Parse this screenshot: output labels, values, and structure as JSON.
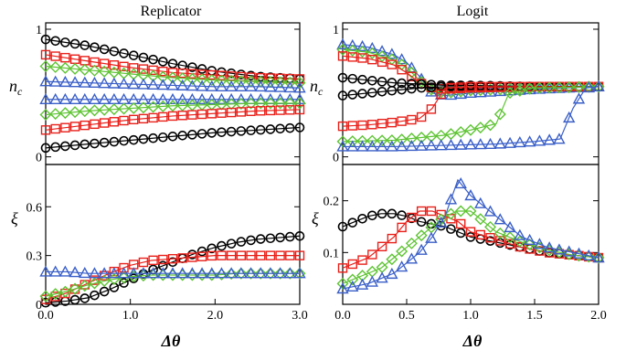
{
  "titles": {
    "left": "Replicator",
    "right": "Logit"
  },
  "colors": {
    "black": "#000000",
    "red": "#e8201a",
    "green": "#5ec433",
    "blue": "#3a5fc8"
  },
  "chart_data": [
    {
      "id": "rep_nc",
      "type": "scatter",
      "title": "Replicator",
      "xlabel": "",
      "ylabel": "n_c",
      "xlim": [
        0,
        3
      ],
      "ylim": [
        -0.06,
        1.05
      ],
      "xticks": [],
      "yticks": [
        0,
        1
      ],
      "ytick_labels": [
        "0",
        "1"
      ],
      "series": [
        {
          "marker": "circle",
          "color": "black",
          "x": [
            0,
            0.5,
            1.0,
            1.5,
            2.0,
            2.5,
            3.0
          ],
          "y": [
            0.92,
            0.87,
            0.8,
            0.73,
            0.67,
            0.63,
            0.61
          ]
        },
        {
          "marker": "square",
          "color": "red",
          "x": [
            0,
            0.5,
            1.0,
            1.5,
            2.0,
            2.5,
            3.0
          ],
          "y": [
            0.8,
            0.75,
            0.7,
            0.66,
            0.64,
            0.62,
            0.61
          ]
        },
        {
          "marker": "diamond",
          "color": "green",
          "x": [
            0,
            0.5,
            1.0,
            1.5,
            2.0,
            2.5,
            3.0
          ],
          "y": [
            0.71,
            0.68,
            0.65,
            0.62,
            0.6,
            0.59,
            0.58
          ]
        },
        {
          "marker": "triangle",
          "color": "blue",
          "x": [
            0,
            0.5,
            1.0,
            1.5,
            2.0,
            2.5,
            3.0
          ],
          "y": [
            0.59,
            0.58,
            0.57,
            0.56,
            0.55,
            0.55,
            0.54
          ]
        },
        {
          "marker": "triangle",
          "color": "blue",
          "x": [
            0,
            0.5,
            1.0,
            1.5,
            2.0,
            2.5,
            3.0
          ],
          "y": [
            0.45,
            0.45,
            0.45,
            0.45,
            0.45,
            0.45,
            0.45
          ]
        },
        {
          "marker": "diamond",
          "color": "green",
          "x": [
            0,
            0.5,
            1.0,
            1.5,
            2.0,
            2.5,
            3.0
          ],
          "y": [
            0.33,
            0.36,
            0.38,
            0.4,
            0.41,
            0.42,
            0.42
          ]
        },
        {
          "marker": "square",
          "color": "red",
          "x": [
            0,
            0.5,
            1.0,
            1.5,
            2.0,
            2.5,
            3.0
          ],
          "y": [
            0.21,
            0.25,
            0.29,
            0.32,
            0.34,
            0.36,
            0.37
          ]
        },
        {
          "marker": "circle",
          "color": "black",
          "x": [
            0,
            0.5,
            1.0,
            1.5,
            2.0,
            2.5,
            3.0
          ],
          "y": [
            0.07,
            0.1,
            0.13,
            0.16,
            0.19,
            0.21,
            0.23
          ]
        }
      ]
    },
    {
      "id": "logit_nc",
      "type": "scatter",
      "title": "Logit",
      "xlabel": "",
      "ylabel": "n_c",
      "xlim": [
        0,
        2
      ],
      "ylim": [
        -0.06,
        1.05
      ],
      "xticks": [],
      "yticks": [
        0,
        1
      ],
      "ytick_labels": [
        "0",
        "1"
      ],
      "series": [
        {
          "marker": "triangle",
          "color": "blue",
          "x": [
            0,
            0.2,
            0.4,
            0.5,
            0.6,
            0.7,
            0.8,
            1.0,
            1.5,
            2.0
          ],
          "y": [
            0.88,
            0.86,
            0.8,
            0.74,
            0.63,
            0.5,
            0.48,
            0.5,
            0.53,
            0.55
          ]
        },
        {
          "marker": "diamond",
          "color": "green",
          "x": [
            0,
            0.2,
            0.4,
            0.5,
            0.6,
            0.7,
            0.8,
            1.0,
            1.5,
            2.0
          ],
          "y": [
            0.84,
            0.82,
            0.76,
            0.7,
            0.6,
            0.52,
            0.5,
            0.52,
            0.54,
            0.55
          ]
        },
        {
          "marker": "square",
          "color": "red",
          "x": [
            0,
            0.2,
            0.4,
            0.5,
            0.6,
            0.7,
            0.8,
            1.0,
            1.5,
            2.0
          ],
          "y": [
            0.79,
            0.77,
            0.72,
            0.66,
            0.58,
            0.54,
            0.53,
            0.54,
            0.55,
            0.55
          ]
        },
        {
          "marker": "circle",
          "color": "black",
          "x": [
            0,
            0.2,
            0.4,
            0.6,
            0.8,
            1.0,
            1.5,
            2.0
          ],
          "y": [
            0.62,
            0.6,
            0.58,
            0.57,
            0.56,
            0.56,
            0.55,
            0.55
          ]
        },
        {
          "marker": "circle",
          "color": "black",
          "x": [
            0,
            0.2,
            0.4,
            0.6,
            0.8,
            1.0,
            1.5,
            2.0
          ],
          "y": [
            0.48,
            0.5,
            0.52,
            0.54,
            0.55,
            0.55,
            0.55,
            0.55
          ]
        },
        {
          "marker": "square",
          "color": "red",
          "x": [
            0,
            0.2,
            0.4,
            0.6,
            0.7,
            0.8,
            1.0,
            1.5,
            2.0
          ],
          "y": [
            0.24,
            0.25,
            0.27,
            0.3,
            0.38,
            0.54,
            0.55,
            0.55,
            0.55
          ]
        },
        {
          "marker": "diamond",
          "color": "green",
          "x": [
            0,
            0.4,
            0.8,
            1.0,
            1.2,
            1.3,
            1.5,
            2.0
          ],
          "y": [
            0.12,
            0.13,
            0.17,
            0.21,
            0.26,
            0.5,
            0.54,
            0.55
          ]
        },
        {
          "marker": "triangle",
          "color": "blue",
          "x": [
            0,
            0.4,
            0.8,
            1.2,
            1.5,
            1.7,
            1.8,
            1.9,
            2.0
          ],
          "y": [
            0.08,
            0.08,
            0.09,
            0.1,
            0.12,
            0.14,
            0.38,
            0.54,
            0.55
          ]
        }
      ]
    },
    {
      "id": "rep_xi",
      "type": "scatter",
      "title": "",
      "xlabel": "Δθ",
      "ylabel": "ξ",
      "xlim": [
        0,
        3
      ],
      "ylim": [
        0,
        0.86
      ],
      "xticks": [
        0,
        1,
        2,
        3
      ],
      "xtick_labels": [
        "0.0",
        "1.0",
        "2.0",
        "3.0"
      ],
      "yticks": [
        0,
        0.3,
        0.6
      ],
      "ytick_labels": [
        "0",
        "0.3",
        "0.6"
      ],
      "series": [
        {
          "marker": "circle",
          "color": "black",
          "x": [
            0,
            0.25,
            0.5,
            0.75,
            1.0,
            1.25,
            1.5,
            1.75,
            2.0,
            2.25,
            2.5,
            2.75,
            3.0
          ],
          "y": [
            0.01,
            0.02,
            0.04,
            0.09,
            0.15,
            0.21,
            0.26,
            0.31,
            0.35,
            0.38,
            0.4,
            0.41,
            0.42
          ]
        },
        {
          "marker": "square",
          "color": "red",
          "x": [
            0,
            0.25,
            0.5,
            0.75,
            1.0,
            1.25,
            1.5,
            1.75,
            2.0,
            2.25,
            2.5,
            2.75,
            3.0
          ],
          "y": [
            0.03,
            0.07,
            0.13,
            0.19,
            0.24,
            0.27,
            0.28,
            0.29,
            0.3,
            0.3,
            0.3,
            0.3,
            0.3
          ]
        },
        {
          "marker": "diamond",
          "color": "green",
          "x": [
            0,
            0.25,
            0.5,
            0.75,
            1.0,
            1.25,
            1.5,
            1.75,
            2.0,
            2.25,
            2.5,
            2.75,
            3.0
          ],
          "y": [
            0.05,
            0.08,
            0.12,
            0.15,
            0.17,
            0.18,
            0.18,
            0.18,
            0.18,
            0.19,
            0.19,
            0.19,
            0.19
          ]
        },
        {
          "marker": "triangle",
          "color": "blue",
          "x": [
            0,
            0.25,
            0.5,
            0.75,
            1.0,
            1.25,
            1.5,
            1.75,
            2.0,
            2.25,
            2.5,
            2.75,
            3.0
          ],
          "y": [
            0.2,
            0.2,
            0.19,
            0.19,
            0.19,
            0.19,
            0.19,
            0.19,
            0.19,
            0.19,
            0.19,
            0.19,
            0.19
          ]
        }
      ]
    },
    {
      "id": "logit_xi",
      "type": "scatter",
      "title": "",
      "xlabel": "Δθ",
      "ylabel": "ξ",
      "xlim": [
        0,
        2
      ],
      "ylim": [
        0,
        0.27
      ],
      "xticks": [
        0,
        0.5,
        1,
        1.5,
        2
      ],
      "xtick_labels": [
        "0.0",
        "0.5",
        "1.0",
        "1.5",
        "2.0"
      ],
      "yticks": [
        0.1,
        0.2
      ],
      "ytick_labels": [
        "0.1",
        "0.2"
      ],
      "series": [
        {
          "marker": "circle",
          "color": "black",
          "x": [
            0,
            0.1,
            0.2,
            0.3,
            0.4,
            0.5,
            0.6,
            0.7,
            0.8,
            0.9,
            1.0,
            1.2,
            1.4,
            1.6,
            1.8,
            2.0
          ],
          "y": [
            0.15,
            0.16,
            0.17,
            0.175,
            0.175,
            0.17,
            0.16,
            0.155,
            0.15,
            0.14,
            0.13,
            0.12,
            0.11,
            0.1,
            0.095,
            0.09
          ]
        },
        {
          "marker": "square",
          "color": "red",
          "x": [
            0,
            0.1,
            0.2,
            0.3,
            0.4,
            0.5,
            0.6,
            0.7,
            0.8,
            0.9,
            1.0,
            1.2,
            1.4,
            1.6,
            1.8,
            2.0
          ],
          "y": [
            0.07,
            0.08,
            0.09,
            0.11,
            0.13,
            0.16,
            0.18,
            0.18,
            0.17,
            0.16,
            0.14,
            0.125,
            0.11,
            0.1,
            0.095,
            0.09
          ]
        },
        {
          "marker": "diamond",
          "color": "green",
          "x": [
            0,
            0.1,
            0.2,
            0.3,
            0.4,
            0.5,
            0.6,
            0.7,
            0.8,
            0.9,
            1.0,
            1.1,
            1.2,
            1.4,
            1.6,
            1.8,
            2.0
          ],
          "y": [
            0.04,
            0.05,
            0.06,
            0.07,
            0.09,
            0.11,
            0.13,
            0.15,
            0.17,
            0.18,
            0.18,
            0.16,
            0.14,
            0.12,
            0.105,
            0.095,
            0.09
          ]
        },
        {
          "marker": "triangle",
          "color": "blue",
          "x": [
            0,
            0.1,
            0.2,
            0.3,
            0.4,
            0.5,
            0.6,
            0.7,
            0.8,
            0.9,
            1.0,
            1.1,
            1.2,
            1.3,
            1.4,
            1.6,
            1.8,
            2.0
          ],
          "y": [
            0.03,
            0.035,
            0.04,
            0.05,
            0.06,
            0.08,
            0.1,
            0.13,
            0.17,
            0.24,
            0.21,
            0.19,
            0.17,
            0.15,
            0.13,
            0.11,
            0.1,
            0.09
          ]
        }
      ]
    }
  ]
}
